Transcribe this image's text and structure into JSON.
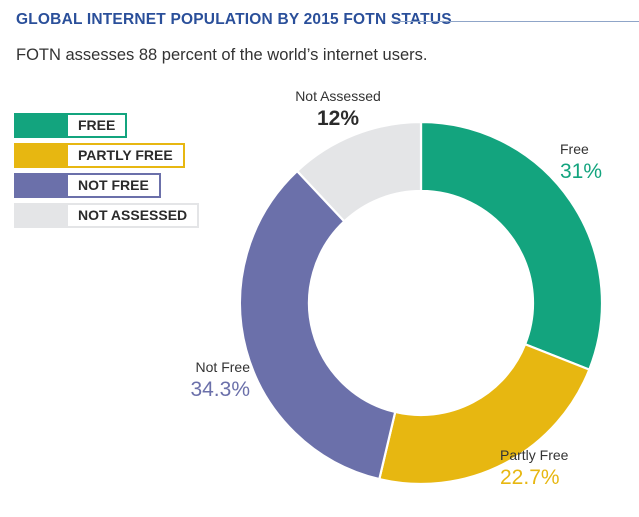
{
  "header": {
    "title": "GLOBAL INTERNET POPULATION BY 2015 FOTN STATUS",
    "subtitle": "FOTN assesses 88 percent of the world’s internet users."
  },
  "legend": {
    "placement": "left",
    "items": [
      {
        "label": "FREE",
        "color": "#13a47e"
      },
      {
        "label": "PARTLY FREE",
        "color": "#e7b711"
      },
      {
        "label": "NOT FREE",
        "color": "#6b70aa"
      },
      {
        "label": "NOT ASSESSED",
        "color": "#e4e5e7"
      }
    ]
  },
  "chart_data": {
    "type": "pie",
    "title": "GLOBAL INTERNET POPULATION BY 2015 FOTN STATUS",
    "subtitle": "FOTN assesses 88 percent of the world’s internet users.",
    "donut": true,
    "slices": [
      {
        "name": "Free",
        "value": 31,
        "display": "31%",
        "color": "#13a47e"
      },
      {
        "name": "Partly Free",
        "value": 22.7,
        "display": "22.7%",
        "color": "#e7b711"
      },
      {
        "name": "Not Free",
        "value": 34.3,
        "display": "34.3%",
        "color": "#6b70aa"
      },
      {
        "name": "Not Assessed",
        "value": 12,
        "display": "12%",
        "color": "#e4e5e7",
        "value_color": "#2b2b2b"
      }
    ]
  }
}
